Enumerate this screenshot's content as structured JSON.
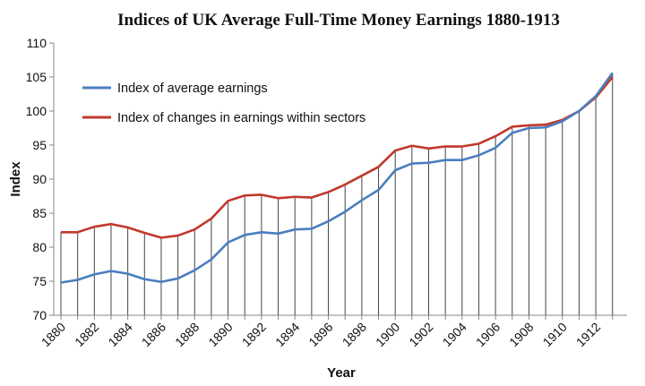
{
  "chart_data": {
    "type": "line",
    "title": "Indices of UK Average Full-Time Money Earnings 1880-1913",
    "xlabel": "Year",
    "ylabel": "Index",
    "ylim": [
      70,
      110
    ],
    "yticks": [
      70,
      75,
      80,
      85,
      90,
      95,
      100,
      105,
      110
    ],
    "xlim": [
      1880,
      1913
    ],
    "xtick_labels": [
      "1880",
      "1882",
      "1884",
      "1886",
      "1888",
      "1890",
      "1892",
      "1894",
      "1896",
      "1898",
      "1900",
      "1902",
      "1904",
      "1906",
      "1908",
      "1910",
      "1912"
    ],
    "grid": "vertical drop lines at each year",
    "legend_position": "top-left",
    "x": [
      1880,
      1881,
      1882,
      1883,
      1884,
      1885,
      1886,
      1887,
      1888,
      1889,
      1890,
      1891,
      1892,
      1893,
      1894,
      1895,
      1896,
      1897,
      1898,
      1899,
      1900,
      1901,
      1902,
      1903,
      1904,
      1905,
      1906,
      1907,
      1908,
      1909,
      1910,
      1911,
      1912,
      1913
    ],
    "series": [
      {
        "name": "Index of average earnings",
        "color": "#4a7ebf",
        "values": [
          74.8,
          75.2,
          76.0,
          76.5,
          76.1,
          75.3,
          74.9,
          75.4,
          76.6,
          78.2,
          80.7,
          81.8,
          82.2,
          82.0,
          82.6,
          82.7,
          83.8,
          85.2,
          86.9,
          88.4,
          91.3,
          92.3,
          92.4,
          92.8,
          92.8,
          93.5,
          94.6,
          96.8,
          97.5,
          97.6,
          98.5,
          100.0,
          102.2,
          105.6
        ]
      },
      {
        "name": "Index of changes in earnings within sectors",
        "color": "#c0392b",
        "values": [
          82.2,
          82.2,
          83.0,
          83.4,
          82.9,
          82.1,
          81.4,
          81.7,
          82.6,
          84.2,
          86.8,
          87.6,
          87.7,
          87.2,
          87.4,
          87.3,
          88.1,
          89.2,
          90.5,
          91.8,
          94.2,
          94.9,
          94.5,
          94.8,
          94.8,
          95.2,
          96.3,
          97.7,
          97.9,
          98.0,
          98.7,
          100.0,
          102.0,
          105.0
        ]
      }
    ]
  }
}
